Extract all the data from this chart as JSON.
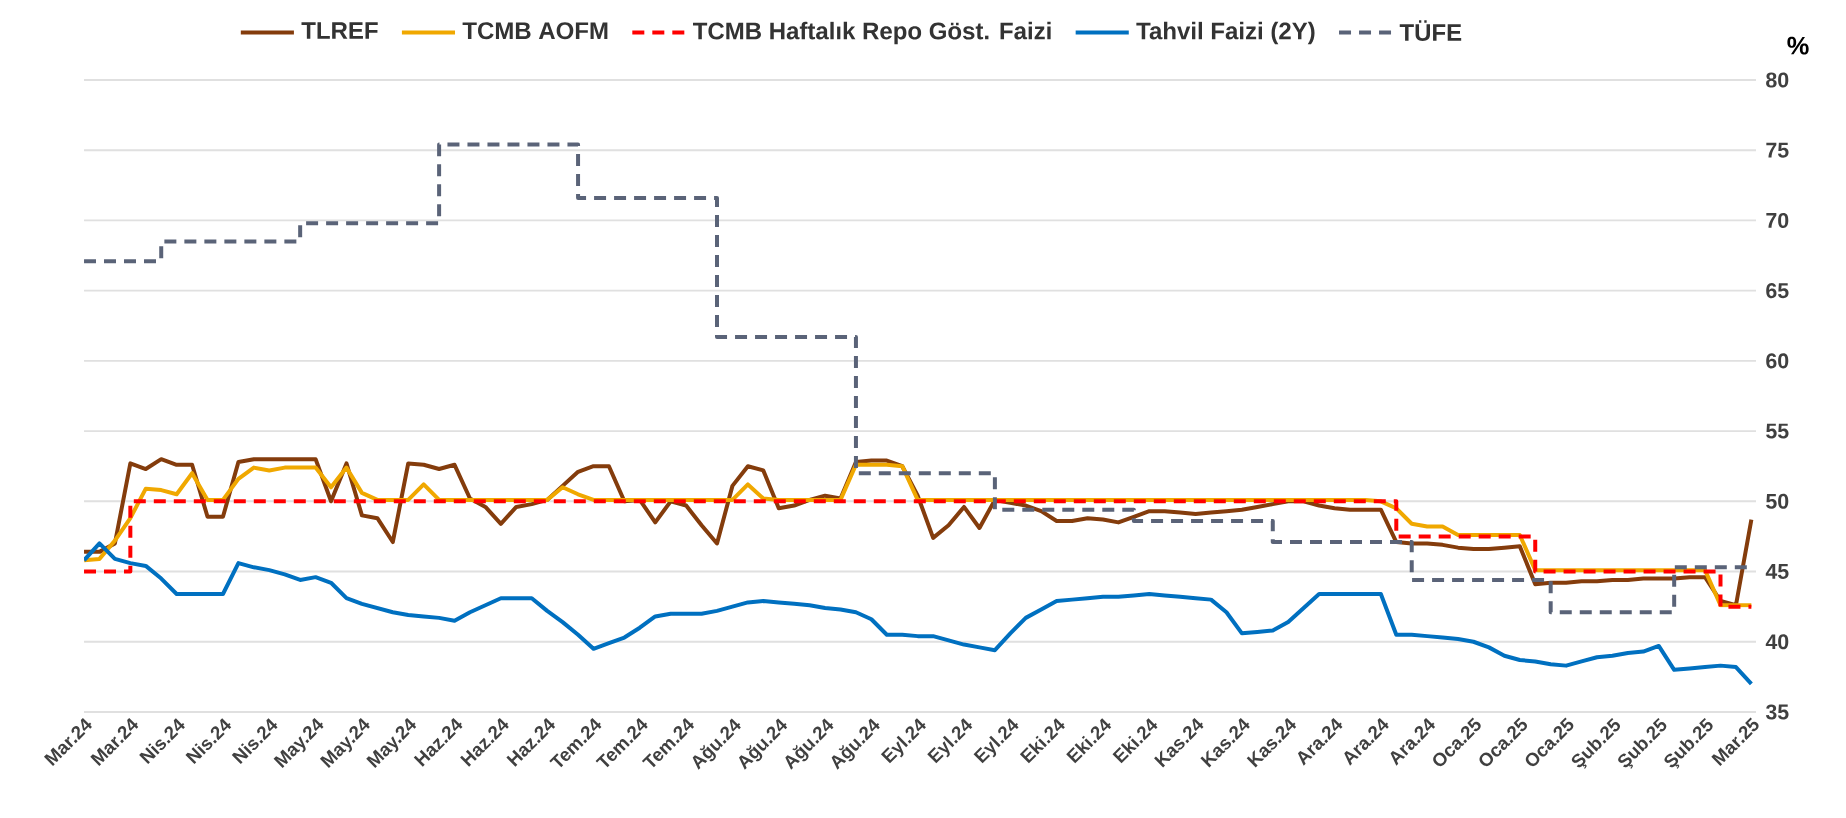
{
  "chart_data": {
    "type": "line",
    "ylabel": "%",
    "grid": "y",
    "legend": "top",
    "ylim": [
      35,
      80
    ],
    "yticks": [
      35,
      40,
      45,
      50,
      55,
      60,
      65,
      70,
      75,
      80
    ],
    "categories": [
      "Mar.24",
      null,
      null,
      "Mar.24",
      null,
      null,
      "Nis.24",
      null,
      null,
      "Nis.24",
      null,
      null,
      "Nis.24",
      null,
      null,
      "May.24",
      null,
      null,
      "May.24",
      null,
      null,
      "May.24",
      null,
      null,
      "Haz.24",
      null,
      null,
      "Haz.24",
      null,
      null,
      "Haz.24",
      null,
      null,
      "Tem.24",
      null,
      null,
      "Tem.24",
      null,
      null,
      "Tem.24",
      null,
      null,
      "Ağu.24",
      null,
      null,
      "Ağu.24",
      null,
      null,
      "Ağu.24",
      null,
      null,
      "Ağu.24",
      null,
      null,
      "Eyl.24",
      null,
      null,
      "Eyl.24",
      null,
      null,
      "Eyl.24",
      null,
      null,
      "Eki.24",
      null,
      null,
      "Eki.24",
      null,
      null,
      "Eki.24",
      null,
      null,
      "Kas.24",
      null,
      null,
      "Kas.24",
      null,
      null,
      "Kas.24",
      null,
      null,
      "Ara.24",
      null,
      null,
      "Ara.24",
      null,
      null,
      "Ara.24",
      null,
      null,
      "Oca.25",
      null,
      null,
      "Oca.25",
      null,
      null,
      "Oca.25",
      null,
      null,
      "Şub.25",
      null,
      null,
      "Şub.25",
      null,
      null,
      "Şub.25",
      null,
      null,
      "Mar.25"
    ],
    "series": [
      {
        "name": "TLREF",
        "color": "#843c0c",
        "line_style": "solid",
        "values": [
          46.4,
          46.4,
          47.0,
          52.7,
          52.3,
          53.0,
          52.6,
          52.6,
          48.9,
          48.9,
          52.8,
          53.0,
          53.0,
          53.0,
          53.0,
          53.0,
          50.0,
          52.7,
          49.0,
          48.8,
          47.1,
          52.7,
          52.6,
          52.3,
          52.6,
          50.2,
          49.6,
          48.4,
          49.6,
          49.8,
          50.1,
          51.1,
          52.1,
          52.5,
          52.5,
          50.0,
          50.1,
          48.5,
          50.0,
          49.7,
          48.3,
          47.0,
          51.1,
          52.5,
          52.2,
          49.5,
          49.7,
          50.1,
          50.4,
          50.2,
          52.8,
          52.9,
          52.9,
          52.5,
          50.4,
          47.4,
          48.3,
          49.6,
          48.1,
          50.1,
          49.9,
          49.7,
          49.3,
          48.6,
          48.6,
          48.8,
          48.7,
          48.5,
          48.9,
          49.3,
          49.3,
          49.2,
          49.1,
          49.2,
          49.3,
          49.4,
          49.6,
          49.8,
          50.0,
          50.0,
          49.7,
          49.5,
          49.4,
          49.4,
          49.4,
          47.1,
          47.0,
          47.0,
          46.9,
          46.7,
          46.6,
          46.6,
          46.7,
          46.8,
          44.1,
          44.2,
          44.2,
          44.3,
          44.3,
          44.4,
          44.4,
          44.5,
          44.5,
          44.5,
          44.6,
          44.6,
          42.9,
          42.6,
          48.7
        ]
      },
      {
        "name": "TCMB AOFM",
        "color": "#f0a800",
        "line_style": "solid",
        "values": [
          45.8,
          45.9,
          47.2,
          48.8,
          50.9,
          50.8,
          50.5,
          52.0,
          50.1,
          50.1,
          51.6,
          52.4,
          52.2,
          52.4,
          52.4,
          52.4,
          51.0,
          52.4,
          50.6,
          50.1,
          50.1,
          50.1,
          51.2,
          50.1,
          50.1,
          50.1,
          50.1,
          50.1,
          50.1,
          50.1,
          50.1,
          51.0,
          50.5,
          50.1,
          50.1,
          50.1,
          50.1,
          50.1,
          50.1,
          50.1,
          50.1,
          50.1,
          50.1,
          51.2,
          50.2,
          50.1,
          50.1,
          50.1,
          50.1,
          50.1,
          52.6,
          52.6,
          52.6,
          52.5,
          50.1,
          50.1,
          50.1,
          50.1,
          50.1,
          50.1,
          50.1,
          50.1,
          50.1,
          50.1,
          50.1,
          50.1,
          50.1,
          50.1,
          50.1,
          50.1,
          50.1,
          50.1,
          50.1,
          50.1,
          50.1,
          50.1,
          50.1,
          50.1,
          50.1,
          50.1,
          50.1,
          50.1,
          50.1,
          50.1,
          50.0,
          49.5,
          48.4,
          48.2,
          48.2,
          47.6,
          47.6,
          47.6,
          47.6,
          47.6,
          45.1,
          45.1,
          45.1,
          45.1,
          45.1,
          45.1,
          45.1,
          45.1,
          45.1,
          45.1,
          45.1,
          45.1,
          42.6,
          42.6,
          42.6
        ]
      },
      {
        "name": "TCMB Haftalık Repo Göst. Faizi",
        "color": "#ff0000",
        "type": "step",
        "line_style": "dashed",
        "values": [
          45,
          45,
          45,
          50,
          50,
          50,
          50,
          50,
          50,
          50,
          50,
          50,
          50,
          50,
          50,
          50,
          50,
          50,
          50,
          50,
          50,
          50,
          50,
          50,
          50,
          50,
          50,
          50,
          50,
          50,
          50,
          50,
          50,
          50,
          50,
          50,
          50,
          50,
          50,
          50,
          50,
          50,
          50,
          50,
          50,
          50,
          50,
          50,
          50,
          50,
          50,
          50,
          50,
          50,
          50,
          50,
          50,
          50,
          50,
          50,
          50,
          50,
          50,
          50,
          50,
          50,
          50,
          50,
          50,
          50,
          50,
          50,
          50,
          50,
          50,
          50,
          50,
          50,
          50,
          50,
          50,
          50,
          50,
          50,
          50,
          47.5,
          47.5,
          47.5,
          47.5,
          47.5,
          47.5,
          47.5,
          47.5,
          47.5,
          45,
          45,
          45,
          45,
          45,
          45,
          45,
          45,
          45,
          45,
          45,
          45,
          42.5,
          42.5,
          42.5
        ]
      },
      {
        "name": "Tahvil Faizi (2Y)",
        "color": "#0070c0",
        "line_style": "solid",
        "values": [
          45.8,
          47.0,
          45.9,
          45.6,
          45.4,
          44.5,
          43.4,
          43.4,
          43.4,
          43.4,
          45.6,
          45.3,
          45.1,
          44.8,
          44.4,
          44.6,
          44.2,
          43.1,
          42.7,
          42.4,
          42.1,
          41.9,
          41.8,
          41.7,
          41.5,
          42.1,
          42.6,
          43.1,
          43.1,
          43.1,
          42.2,
          41.4,
          40.5,
          39.5,
          39.9,
          40.3,
          41.0,
          41.8,
          42.0,
          42.0,
          42.0,
          42.2,
          42.5,
          42.8,
          42.9,
          42.8,
          42.7,
          42.6,
          42.4,
          42.3,
          42.1,
          41.6,
          40.5,
          40.5,
          40.4,
          40.4,
          40.1,
          39.8,
          39.6,
          39.4,
          40.6,
          41.7,
          42.3,
          42.9,
          43.0,
          43.1,
          43.2,
          43.2,
          43.3,
          43.4,
          43.3,
          43.2,
          43.1,
          43.0,
          42.1,
          40.6,
          40.7,
          40.8,
          41.4,
          42.4,
          43.4,
          43.4,
          43.4,
          43.4,
          43.4,
          40.5,
          40.5,
          40.4,
          40.3,
          40.2,
          40.0,
          39.6,
          39.0,
          38.7,
          38.6,
          38.4,
          38.3,
          38.6,
          38.9,
          39.0,
          39.2,
          39.3,
          39.7,
          38.0,
          38.1,
          38.2,
          38.3,
          38.2,
          37.0
        ]
      },
      {
        "name": "TÜFE",
        "color": "#5a6378",
        "type": "step",
        "line_style": "dashed",
        "values": [
          67.1,
          67.1,
          67.1,
          67.1,
          67.1,
          68.5,
          68.5,
          68.5,
          68.5,
          68.5,
          68.5,
          68.5,
          68.5,
          68.5,
          69.8,
          69.8,
          69.8,
          69.8,
          69.8,
          69.8,
          69.8,
          69.8,
          69.8,
          75.4,
          75.4,
          75.4,
          75.4,
          75.4,
          75.4,
          75.4,
          75.4,
          75.4,
          71.6,
          71.6,
          71.6,
          71.6,
          71.6,
          71.6,
          71.6,
          71.6,
          71.6,
          61.7,
          61.7,
          61.7,
          61.7,
          61.7,
          61.7,
          61.7,
          61.7,
          61.7,
          52.0,
          52.0,
          52.0,
          52.0,
          52.0,
          52.0,
          52.0,
          52.0,
          52.0,
          49.4,
          49.4,
          49.4,
          49.4,
          49.4,
          49.4,
          49.4,
          49.4,
          49.4,
          48.6,
          48.6,
          48.6,
          48.6,
          48.6,
          48.6,
          48.6,
          48.6,
          48.6,
          47.1,
          47.1,
          47.1,
          47.1,
          47.1,
          47.1,
          47.1,
          47.1,
          47.1,
          44.4,
          44.4,
          44.4,
          44.4,
          44.4,
          44.4,
          44.4,
          44.4,
          44.4,
          42.1,
          42.1,
          42.1,
          42.1,
          42.1,
          42.1,
          42.1,
          42.1,
          45.3,
          45.3,
          45.3,
          45.3,
          45.3,
          45.3
        ]
      }
    ]
  }
}
